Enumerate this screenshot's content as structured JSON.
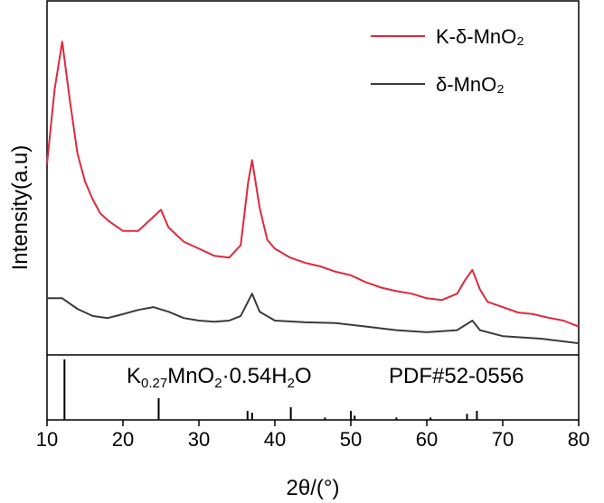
{
  "chart_data": [
    {
      "type": "line",
      "xlabel": "2θ/(°)",
      "ylabel": "Intensity(a.u)",
      "xlim": [
        10,
        80
      ],
      "xticks": [
        10,
        20,
        30,
        40,
        50,
        60,
        70,
        80
      ],
      "ylim": [
        0,
        100
      ],
      "legend": "upper right",
      "series": [
        {
          "name": "K-δ-MnO₂",
          "color": "#e0283c",
          "x": [
            10,
            11,
            12,
            13,
            14,
            15,
            16,
            17,
            18,
            20,
            22,
            24,
            25,
            26,
            28,
            30,
            32,
            34,
            35.5,
            36.5,
            37,
            38,
            39,
            40,
            42,
            44,
            46,
            48,
            50,
            52,
            54,
            56,
            58,
            60,
            62,
            64,
            65,
            66,
            67,
            68,
            70,
            72,
            74,
            76,
            78,
            80
          ],
          "values": [
            54,
            75,
            88.5,
            72,
            57,
            49,
            44,
            40,
            38,
            35,
            35,
            39,
            41,
            36,
            32,
            30,
            28,
            27.5,
            31,
            49,
            55,
            41.5,
            32.5,
            30,
            27.5,
            26,
            25,
            23.5,
            22.5,
            20.5,
            19,
            18,
            17.3,
            16,
            15.5,
            17.3,
            21,
            24,
            18.5,
            15,
            13.5,
            12,
            11.5,
            10.5,
            9.7,
            8
          ]
        },
        {
          "name": "δ-MnO₂",
          "color": "#3a3a3c",
          "x": [
            10,
            12,
            14,
            16,
            18,
            20,
            22,
            24,
            26,
            28,
            30,
            32,
            34,
            35.5,
            37,
            38,
            40,
            44,
            48,
            52,
            56,
            60,
            64,
            66,
            67,
            70,
            75,
            80
          ],
          "values": [
            16,
            16,
            13,
            11,
            10.4,
            11.5,
            12.7,
            13.5,
            12.2,
            10.4,
            9.7,
            9.4,
            9.7,
            11,
            17.3,
            12.2,
            9.7,
            9.2,
            9,
            8,
            7,
            6.4,
            7,
            9.7,
            7,
            5.3,
            4.6,
            3.3
          ]
        }
      ]
    },
    {
      "type": "stick",
      "formula": [
        "K",
        "0.27",
        "MnO",
        "2",
        "·0.54H",
        "2",
        "O"
      ],
      "pdf": "PDF#52-0556",
      "ylim": [
        0,
        100
      ],
      "x": [
        12.3,
        24.7,
        36.4,
        37.0,
        42.1,
        46.6,
        50.0,
        50.5,
        56.0,
        60.5,
        65.3,
        66.6
      ],
      "values": [
        100,
        36,
        15,
        12,
        21,
        4,
        15,
        7,
        4,
        4,
        10,
        15
      ],
      "color": "#000000"
    }
  ]
}
